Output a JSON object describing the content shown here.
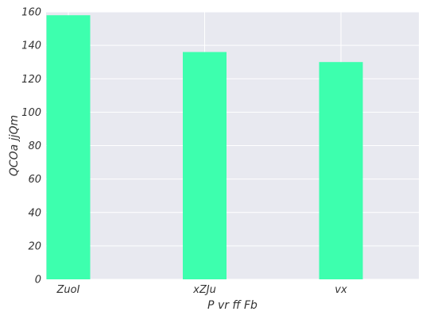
{
  "chart_data": {
    "type": "bar",
    "categories": [
      "ZuoI",
      "xZJu",
      "vx"
    ],
    "values": [
      158,
      136,
      130
    ],
    "xlabel": "P vr ff Fb",
    "ylabel": "QCOa jjQm",
    "ylim": [
      0,
      160
    ],
    "yticks": [
      0,
      20,
      40,
      60,
      80,
      100,
      120,
      140,
      160
    ],
    "grid": true,
    "colors": {
      "bar": "#3dffae",
      "plot_bg": "#e8e9f0",
      "grid": "#ffffff"
    }
  }
}
